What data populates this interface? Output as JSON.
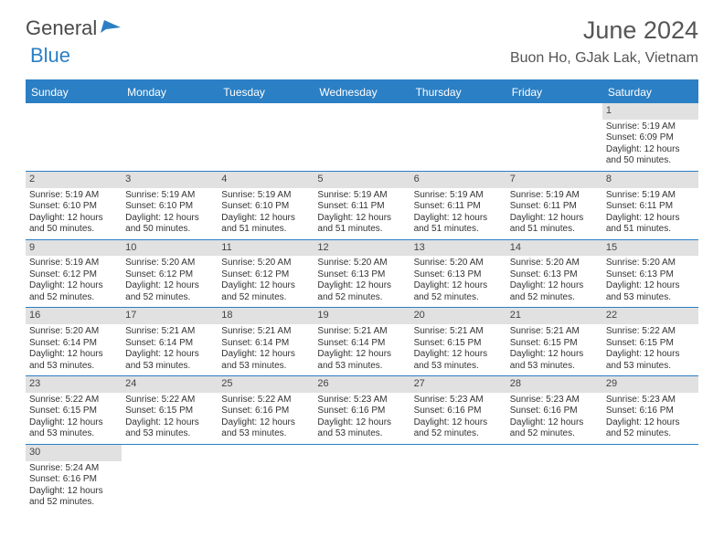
{
  "brand": {
    "text1": "General",
    "text2": "Blue"
  },
  "title": "June 2024",
  "location": "Buon Ho, GJak Lak, Vietnam",
  "colors": {
    "accent": "#2b7fc4",
    "headerText": "#ffffff",
    "daynumBg": "#e1e1e1",
    "bodyText": "#333333"
  },
  "dayHeaders": [
    "Sunday",
    "Monday",
    "Tuesday",
    "Wednesday",
    "Thursday",
    "Friday",
    "Saturday"
  ],
  "weeks": [
    [
      {
        "n": "",
        "sr": "",
        "ss": "",
        "dl": ""
      },
      {
        "n": "",
        "sr": "",
        "ss": "",
        "dl": ""
      },
      {
        "n": "",
        "sr": "",
        "ss": "",
        "dl": ""
      },
      {
        "n": "",
        "sr": "",
        "ss": "",
        "dl": ""
      },
      {
        "n": "",
        "sr": "",
        "ss": "",
        "dl": ""
      },
      {
        "n": "",
        "sr": "",
        "ss": "",
        "dl": ""
      },
      {
        "n": "1",
        "sr": "Sunrise: 5:19 AM",
        "ss": "Sunset: 6:09 PM",
        "dl": "Daylight: 12 hours and 50 minutes."
      }
    ],
    [
      {
        "n": "2",
        "sr": "Sunrise: 5:19 AM",
        "ss": "Sunset: 6:10 PM",
        "dl": "Daylight: 12 hours and 50 minutes."
      },
      {
        "n": "3",
        "sr": "Sunrise: 5:19 AM",
        "ss": "Sunset: 6:10 PM",
        "dl": "Daylight: 12 hours and 50 minutes."
      },
      {
        "n": "4",
        "sr": "Sunrise: 5:19 AM",
        "ss": "Sunset: 6:10 PM",
        "dl": "Daylight: 12 hours and 51 minutes."
      },
      {
        "n": "5",
        "sr": "Sunrise: 5:19 AM",
        "ss": "Sunset: 6:11 PM",
        "dl": "Daylight: 12 hours and 51 minutes."
      },
      {
        "n": "6",
        "sr": "Sunrise: 5:19 AM",
        "ss": "Sunset: 6:11 PM",
        "dl": "Daylight: 12 hours and 51 minutes."
      },
      {
        "n": "7",
        "sr": "Sunrise: 5:19 AM",
        "ss": "Sunset: 6:11 PM",
        "dl": "Daylight: 12 hours and 51 minutes."
      },
      {
        "n": "8",
        "sr": "Sunrise: 5:19 AM",
        "ss": "Sunset: 6:11 PM",
        "dl": "Daylight: 12 hours and 51 minutes."
      }
    ],
    [
      {
        "n": "9",
        "sr": "Sunrise: 5:19 AM",
        "ss": "Sunset: 6:12 PM",
        "dl": "Daylight: 12 hours and 52 minutes."
      },
      {
        "n": "10",
        "sr": "Sunrise: 5:20 AM",
        "ss": "Sunset: 6:12 PM",
        "dl": "Daylight: 12 hours and 52 minutes."
      },
      {
        "n": "11",
        "sr": "Sunrise: 5:20 AM",
        "ss": "Sunset: 6:12 PM",
        "dl": "Daylight: 12 hours and 52 minutes."
      },
      {
        "n": "12",
        "sr": "Sunrise: 5:20 AM",
        "ss": "Sunset: 6:13 PM",
        "dl": "Daylight: 12 hours and 52 minutes."
      },
      {
        "n": "13",
        "sr": "Sunrise: 5:20 AM",
        "ss": "Sunset: 6:13 PM",
        "dl": "Daylight: 12 hours and 52 minutes."
      },
      {
        "n": "14",
        "sr": "Sunrise: 5:20 AM",
        "ss": "Sunset: 6:13 PM",
        "dl": "Daylight: 12 hours and 52 minutes."
      },
      {
        "n": "15",
        "sr": "Sunrise: 5:20 AM",
        "ss": "Sunset: 6:13 PM",
        "dl": "Daylight: 12 hours and 53 minutes."
      }
    ],
    [
      {
        "n": "16",
        "sr": "Sunrise: 5:20 AM",
        "ss": "Sunset: 6:14 PM",
        "dl": "Daylight: 12 hours and 53 minutes."
      },
      {
        "n": "17",
        "sr": "Sunrise: 5:21 AM",
        "ss": "Sunset: 6:14 PM",
        "dl": "Daylight: 12 hours and 53 minutes."
      },
      {
        "n": "18",
        "sr": "Sunrise: 5:21 AM",
        "ss": "Sunset: 6:14 PM",
        "dl": "Daylight: 12 hours and 53 minutes."
      },
      {
        "n": "19",
        "sr": "Sunrise: 5:21 AM",
        "ss": "Sunset: 6:14 PM",
        "dl": "Daylight: 12 hours and 53 minutes."
      },
      {
        "n": "20",
        "sr": "Sunrise: 5:21 AM",
        "ss": "Sunset: 6:15 PM",
        "dl": "Daylight: 12 hours and 53 minutes."
      },
      {
        "n": "21",
        "sr": "Sunrise: 5:21 AM",
        "ss": "Sunset: 6:15 PM",
        "dl": "Daylight: 12 hours and 53 minutes."
      },
      {
        "n": "22",
        "sr": "Sunrise: 5:22 AM",
        "ss": "Sunset: 6:15 PM",
        "dl": "Daylight: 12 hours and 53 minutes."
      }
    ],
    [
      {
        "n": "23",
        "sr": "Sunrise: 5:22 AM",
        "ss": "Sunset: 6:15 PM",
        "dl": "Daylight: 12 hours and 53 minutes."
      },
      {
        "n": "24",
        "sr": "Sunrise: 5:22 AM",
        "ss": "Sunset: 6:15 PM",
        "dl": "Daylight: 12 hours and 53 minutes."
      },
      {
        "n": "25",
        "sr": "Sunrise: 5:22 AM",
        "ss": "Sunset: 6:16 PM",
        "dl": "Daylight: 12 hours and 53 minutes."
      },
      {
        "n": "26",
        "sr": "Sunrise: 5:23 AM",
        "ss": "Sunset: 6:16 PM",
        "dl": "Daylight: 12 hours and 53 minutes."
      },
      {
        "n": "27",
        "sr": "Sunrise: 5:23 AM",
        "ss": "Sunset: 6:16 PM",
        "dl": "Daylight: 12 hours and 52 minutes."
      },
      {
        "n": "28",
        "sr": "Sunrise: 5:23 AM",
        "ss": "Sunset: 6:16 PM",
        "dl": "Daylight: 12 hours and 52 minutes."
      },
      {
        "n": "29",
        "sr": "Sunrise: 5:23 AM",
        "ss": "Sunset: 6:16 PM",
        "dl": "Daylight: 12 hours and 52 minutes."
      }
    ],
    [
      {
        "n": "30",
        "sr": "Sunrise: 5:24 AM",
        "ss": "Sunset: 6:16 PM",
        "dl": "Daylight: 12 hours and 52 minutes."
      },
      {
        "n": "",
        "sr": "",
        "ss": "",
        "dl": ""
      },
      {
        "n": "",
        "sr": "",
        "ss": "",
        "dl": ""
      },
      {
        "n": "",
        "sr": "",
        "ss": "",
        "dl": ""
      },
      {
        "n": "",
        "sr": "",
        "ss": "",
        "dl": ""
      },
      {
        "n": "",
        "sr": "",
        "ss": "",
        "dl": ""
      },
      {
        "n": "",
        "sr": "",
        "ss": "",
        "dl": ""
      }
    ]
  ]
}
